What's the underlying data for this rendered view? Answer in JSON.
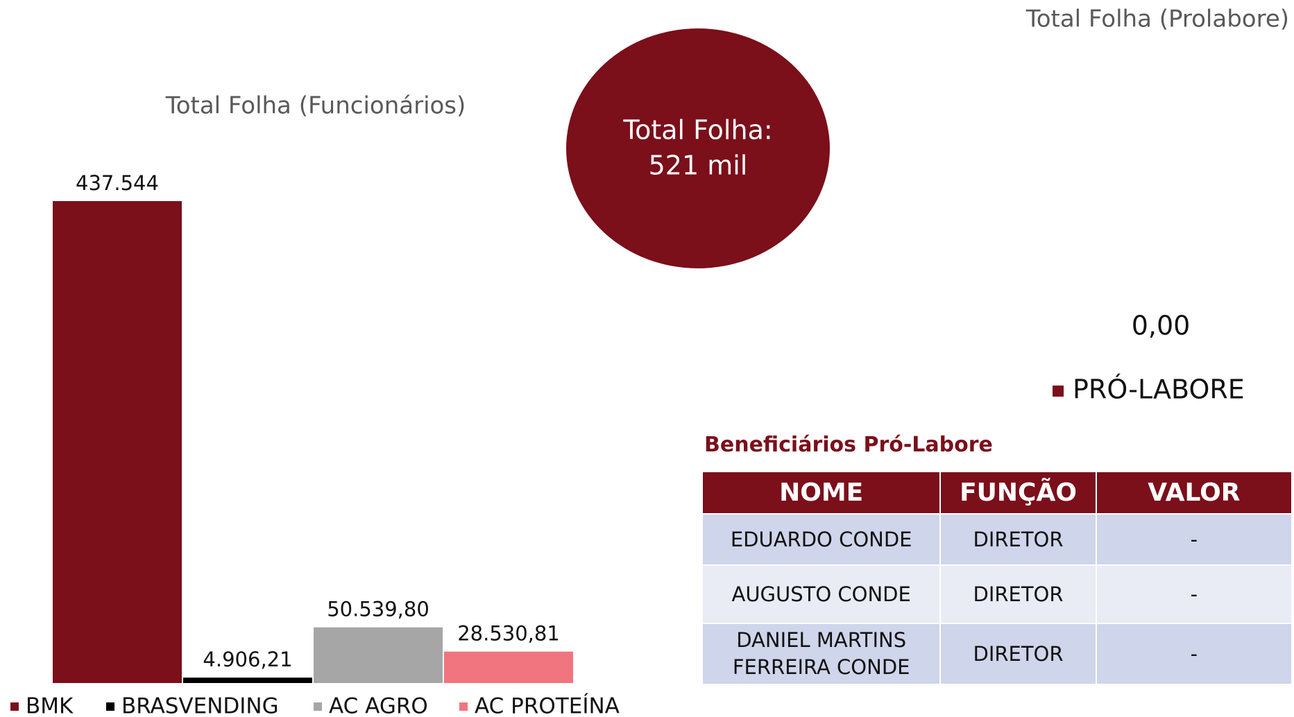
{
  "chart_data": [
    {
      "type": "bar",
      "title": "Total Folha (Funcionários)",
      "categories": [
        "BMK",
        "BRASVENDING",
        "AC AGRO",
        "AC PROTEÍNA"
      ],
      "values": [
        437544,
        4906.21,
        50539.8,
        28530.81
      ],
      "value_labels": [
        "437.544",
        "4.906,21",
        "50.539,80",
        "28.530,81"
      ],
      "colors": [
        "#7b0f1a",
        "#000000",
        "#a6a6a6",
        "#f0757f"
      ]
    },
    {
      "type": "bar",
      "title": "Total Folha (Prolabore)",
      "series": [
        {
          "name": "PRÓ-LABORE",
          "color": "#7b0f1a",
          "values": [
            0
          ],
          "value_labels": [
            "0,00"
          ]
        }
      ]
    }
  ],
  "kpi": {
    "label": "Total Folha:",
    "value": "521 mil"
  },
  "table": {
    "title": "Beneficiários Pró-Labore",
    "header": [
      "NOME",
      "FUNÇÃO",
      "VALOR"
    ],
    "rows": [
      [
        "EDUARDO CONDE",
        "DIRETOR",
        "-"
      ],
      [
        "AUGUSTO CONDE",
        "DIRETOR",
        "-"
      ],
      [
        "DANIEL MARTINS FERREIRA CONDE",
        "DIRETOR",
        "-"
      ]
    ]
  }
}
